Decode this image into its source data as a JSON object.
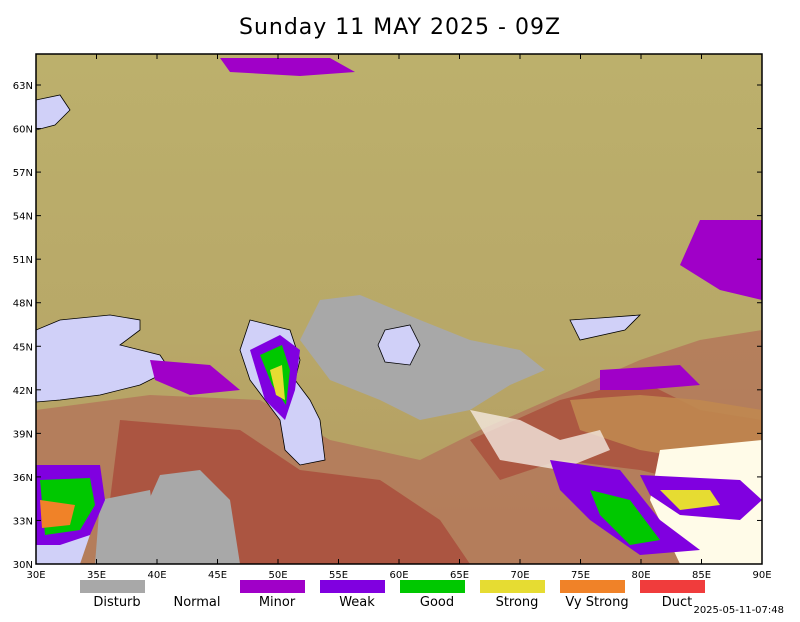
{
  "header": {
    "title": "Sunday 11 MAY 2025 - 09Z"
  },
  "map": {
    "lat_labels": [
      "30N",
      "33N",
      "36N",
      "39N",
      "42N",
      "45N",
      "48N",
      "51N",
      "54N",
      "57N",
      "60N",
      "63N"
    ],
    "lon_labels": [
      "30E",
      "35E",
      "40E",
      "45E",
      "50E",
      "55E",
      "60E",
      "65E",
      "70E",
      "75E",
      "80E",
      "85E",
      "90E"
    ]
  },
  "legend": [
    {
      "label": "Disturb",
      "color": "#a8a8a8"
    },
    {
      "label": "Normal",
      "color": "#ffffff"
    },
    {
      "label": "Minor",
      "color": "#a000c8"
    },
    {
      "label": "Weak",
      "color": "#8000e0"
    },
    {
      "label": "Good",
      "color": "#00c800"
    },
    {
      "label": "Strong",
      "color": "#e6dc32"
    },
    {
      "label": "Vy Strong",
      "color": "#f08228"
    },
    {
      "label": "Duct",
      "color": "#f03c3c"
    }
  ],
  "footer": {
    "timestamp": "2025-05-11-07:48"
  }
}
